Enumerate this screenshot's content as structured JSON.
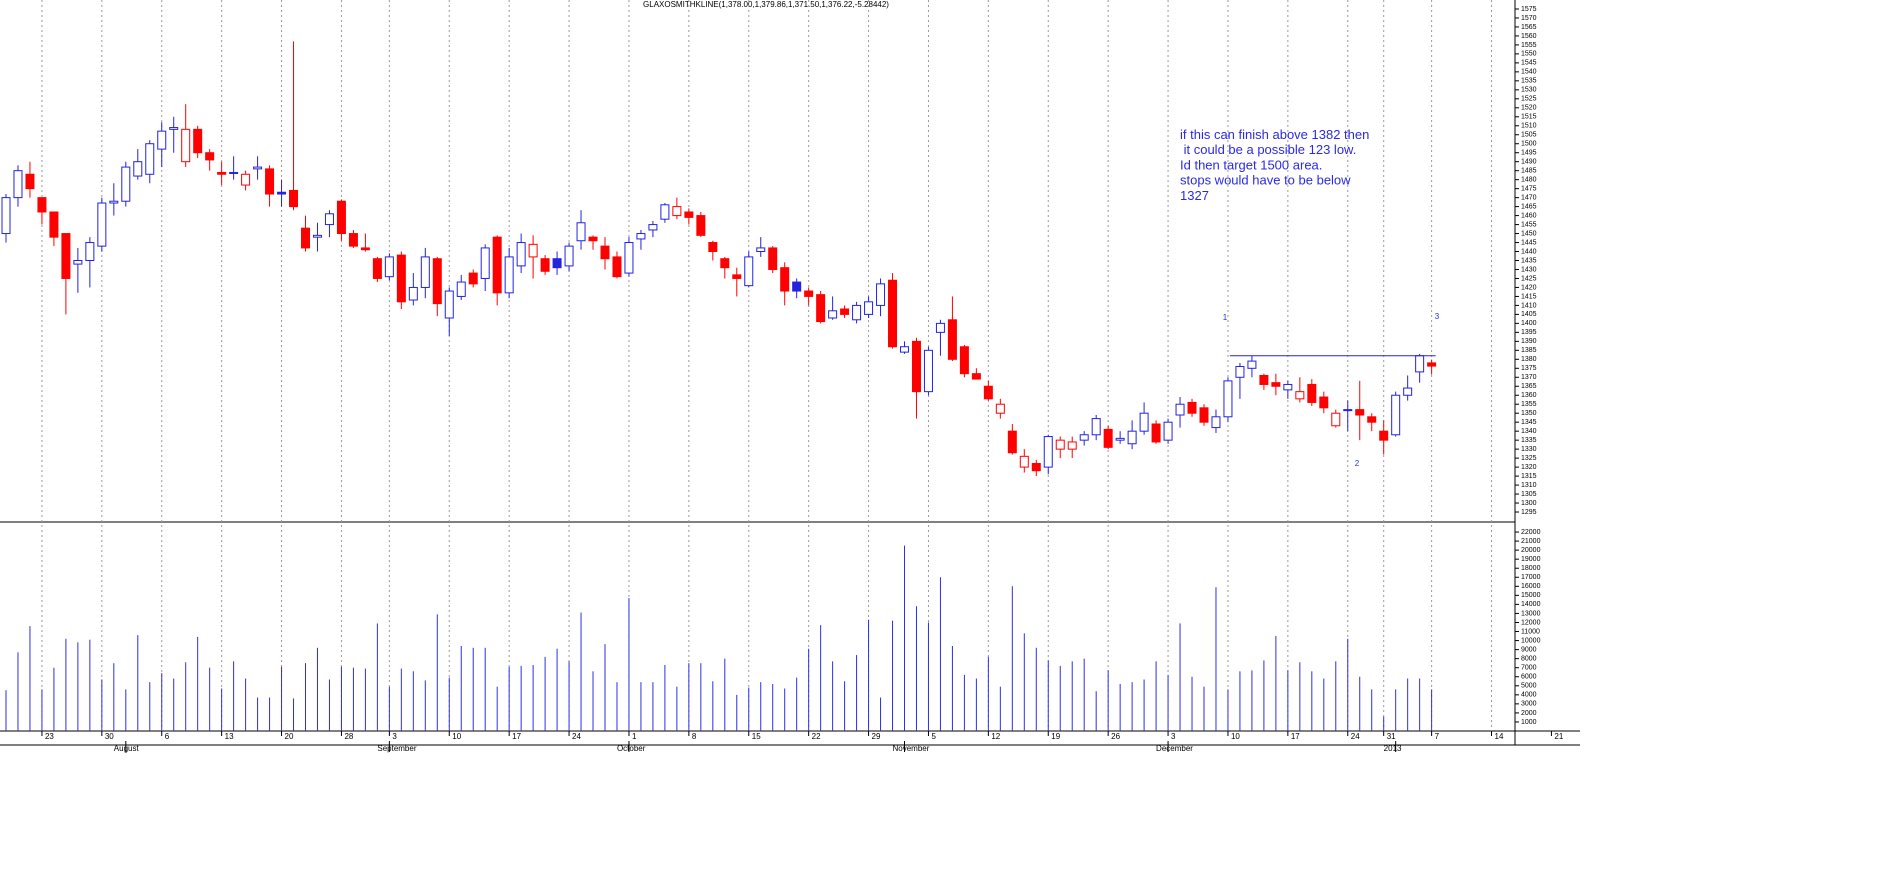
{
  "chart_data": {
    "type": "candlestick",
    "title": "GLAXOSMITHKLINE(1,378.00,1,379.86,1,371.50,1,376.22,-5.28442)",
    "categories": [
      null,
      null,
      null,
      "23",
      null,
      null,
      null,
      null,
      "30",
      null,
      null,
      null,
      null,
      "6",
      null,
      null,
      null,
      null,
      "13",
      null,
      null,
      null,
      null,
      "20",
      null,
      null,
      null,
      null,
      "28",
      null,
      null,
      null,
      "3",
      null,
      null,
      null,
      null,
      "10",
      null,
      null,
      null,
      null,
      "17",
      null,
      null,
      null,
      null,
      "24",
      null,
      null,
      null,
      null,
      "1",
      null,
      null,
      null,
      null,
      "8",
      null,
      null,
      null,
      null,
      "15",
      null,
      null,
      null,
      null,
      "22",
      null,
      null,
      null,
      null,
      "29",
      null,
      null,
      null,
      null,
      "5",
      null,
      null,
      null,
      null,
      "12",
      null,
      null,
      null,
      null,
      "19",
      null,
      null,
      null,
      null,
      "26",
      null,
      null,
      null,
      null,
      "3",
      null,
      null,
      null,
      null,
      "10",
      null,
      null,
      null,
      null,
      "17",
      null,
      null,
      null,
      null,
      "24",
      null,
      null,
      "31",
      null,
      null,
      null,
      "7",
      null,
      null,
      null,
      null,
      "14",
      null,
      null,
      null,
      null,
      "21"
    ],
    "months": [
      null,
      null,
      null,
      null,
      null,
      null,
      null,
      null,
      null,
      null,
      "August",
      null,
      null,
      null,
      null,
      null,
      null,
      null,
      null,
      null,
      null,
      null,
      null,
      null,
      null,
      null,
      null,
      null,
      null,
      null,
      null,
      null,
      "September",
      null,
      null,
      null,
      null,
      null,
      null,
      null,
      null,
      null,
      null,
      null,
      null,
      null,
      null,
      null,
      null,
      null,
      null,
      null,
      "October",
      null,
      null,
      null,
      null,
      null,
      null,
      null,
      null,
      null,
      null,
      null,
      null,
      null,
      null,
      null,
      null,
      null,
      null,
      null,
      null,
      null,
      null,
      "November",
      null,
      null,
      null,
      null,
      null,
      null,
      null,
      null,
      null,
      null,
      null,
      null,
      null,
      null,
      null,
      null,
      null,
      null,
      null,
      null,
      null,
      "December",
      null,
      null,
      null,
      null,
      null,
      null,
      null,
      null,
      null,
      null,
      null,
      null,
      null,
      null,
      null,
      null,
      null,
      null,
      "2013",
      null,
      null,
      null,
      null,
      null,
      null,
      null,
      null,
      null,
      null,
      null,
      null,
      null
    ],
    "open": [
      1450,
      1470,
      1483,
      1470,
      1462,
      1450,
      1433,
      1435,
      1443,
      1467,
      1468,
      1482,
      1483,
      1497,
      1508,
      1490,
      1508,
      1495,
      1484,
      1484,
      1477,
      1486,
      1486,
      1473,
      1474,
      1453,
      1448,
      1455,
      1468,
      1450,
      1442,
      1436,
      1426,
      1438,
      1413,
      1420,
      1436,
      1403,
      1415,
      1428,
      1425,
      1448,
      1417,
      1432,
      1437,
      1436,
      1436,
      1432,
      1446,
      1448,
      1443,
      1437,
      1428,
      1447,
      1452,
      1458,
      1460,
      1462,
      1460,
      1445,
      1436,
      1427,
      1421,
      1440,
      1442,
      1431,
      1423,
      1418,
      1416,
      1403,
      1408,
      1402,
      1405,
      1410,
      1424,
      1384,
      1390,
      1362,
      1395,
      1402,
      1387,
      1372,
      1365,
      1350,
      1340,
      1320,
      1322,
      1320,
      1330,
      1330,
      1335,
      1338,
      1341,
      1335,
      1333,
      1340,
      1344,
      1335,
      1349,
      1356,
      1353,
      1342,
      1348,
      1370,
      1375,
      1371,
      1367,
      1363,
      1358,
      1366,
      1359,
      1343,
      1352,
      1352,
      1348,
      1340,
      1338,
      1360,
      1373,
      1378,
      null,
      null,
      null,
      null,
      null,
      null,
      null,
      null,
      null,
      null
    ],
    "high": [
      1472,
      1488,
      1490,
      1470,
      1462,
      1450,
      1442,
      1448,
      1470,
      1478,
      1490,
      1497,
      1502,
      1512,
      1515,
      1522,
      1510,
      1497,
      1490,
      1493,
      1485,
      1493,
      1488,
      1480,
      1557,
      1460,
      1456,
      1463,
      1469,
      1452,
      1450,
      1437,
      1439,
      1440,
      1428,
      1442,
      1437,
      1420,
      1427,
      1430,
      1444,
      1449,
      1442,
      1450,
      1449,
      1438,
      1440,
      1445,
      1463,
      1449,
      1448,
      1440,
      1448,
      1452,
      1457,
      1467,
      1470,
      1464,
      1462,
      1446,
      1437,
      1431,
      1440,
      1448,
      1443,
      1434,
      1425,
      1420,
      1418,
      1415,
      1410,
      1412,
      1415,
      1425,
      1428,
      1390,
      1392,
      1387,
      1402,
      1415,
      1388,
      1375,
      1368,
      1358,
      1344,
      1330,
      1324,
      1338,
      1337,
      1337,
      1340,
      1349,
      1343,
      1340,
      1346,
      1356,
      1346,
      1347,
      1359,
      1358,
      1355,
      1352,
      1370,
      1378,
      1382,
      1372,
      1372,
      1368,
      1370,
      1369,
      1362,
      1352,
      1357,
      1368,
      1350,
      1346,
      1362,
      1371,
      1383,
      1379.86,
      null,
      null,
      null,
      null,
      null,
      null,
      null,
      null,
      null,
      null
    ],
    "low": [
      1445,
      1465,
      1470,
      1455,
      1443,
      1405,
      1417,
      1420,
      1440,
      1460,
      1465,
      1480,
      1478,
      1487,
      1495,
      1487,
      1492,
      1485,
      1477,
      1480,
      1474,
      1480,
      1465,
      1465,
      1463,
      1440,
      1440,
      1448,
      1446,
      1442,
      1440,
      1423,
      1424,
      1408,
      1410,
      1414,
      1404,
      1393,
      1413,
      1420,
      1418,
      1410,
      1414,
      1428,
      1425,
      1427,
      1427,
      1429,
      1441,
      1441,
      1430,
      1425,
      1426,
      1441,
      1448,
      1456,
      1458,
      1455,
      1448,
      1435,
      1425,
      1415,
      1420,
      1437,
      1428,
      1410,
      1414,
      1410,
      1400,
      1402,
      1403,
      1400,
      1403,
      1404,
      1386,
      1383,
      1347,
      1360,
      1382,
      1379,
      1370,
      1369,
      1357,
      1347,
      1327,
      1317,
      1315,
      1316,
      1325,
      1325,
      1332,
      1335,
      1330,
      1333,
      1330,
      1338,
      1333,
      1333,
      1342,
      1348,
      1343,
      1339,
      1345,
      1358,
      1370,
      1363,
      1360,
      1358,
      1356,
      1354,
      1350,
      1342,
      1340,
      1335,
      1340,
      1327,
      1337,
      1357,
      1367,
      1371.5,
      null,
      null,
      null,
      null,
      null,
      null,
      null,
      null,
      null,
      null
    ],
    "close": [
      1470,
      1485,
      1475,
      1462,
      1448,
      1425,
      1435,
      1445,
      1467,
      1468,
      1487,
      1490,
      1500,
      1507,
      1509,
      1508,
      1495,
      1491,
      1483,
      1484,
      1483,
      1487,
      1472,
      1472,
      1465,
      1442,
      1449,
      1461,
      1450,
      1443,
      1441,
      1425,
      1437,
      1412,
      1420,
      1437,
      1411,
      1418,
      1423,
      1422,
      1442,
      1417,
      1437,
      1445,
      1444,
      1429,
      1431,
      1443,
      1456,
      1446,
      1436,
      1426,
      1445,
      1450,
      1455,
      1466,
      1465,
      1459,
      1449,
      1440,
      1431,
      1425,
      1437,
      1442,
      1430,
      1418,
      1418,
      1415,
      1401,
      1407,
      1405,
      1410,
      1412,
      1422,
      1387,
      1387,
      1362,
      1385,
      1400,
      1380,
      1372,
      1369,
      1358,
      1355,
      1328,
      1326,
      1318,
      1337,
      1335,
      1334,
      1338,
      1347,
      1331,
      1336,
      1340,
      1350,
      1334,
      1345,
      1355,
      1350,
      1345,
      1348,
      1368,
      1376,
      1379,
      1366,
      1365,
      1366,
      1362,
      1356,
      1353,
      1350,
      1352,
      1349,
      1345,
      1335,
      1360,
      1364,
      1382,
      1376.22,
      null,
      null,
      null,
      null,
      null,
      null,
      null,
      null,
      null,
      null
    ],
    "volume": [
      4500,
      8700,
      11600,
      4600,
      7000,
      10200,
      9800,
      10100,
      5700,
      7500,
      4600,
      10600,
      5400,
      6400,
      5800,
      7600,
      10400,
      7000,
      4700,
      7700,
      5800,
      3700,
      3700,
      7100,
      3600,
      7500,
      9200,
      5700,
      7100,
      7000,
      6900,
      11900,
      4900,
      6900,
      6600,
      5600,
      12900,
      5900,
      9400,
      9200,
      9200,
      4900,
      7100,
      7200,
      7300,
      8200,
      9100,
      7700,
      13100,
      6600,
      9600,
      5400,
      14700,
      5400,
      5400,
      7300,
      4900,
      7500,
      7500,
      5500,
      8000,
      4000,
      4800,
      5400,
      5200,
      4700,
      5900,
      9100,
      11700,
      7700,
      5500,
      8400,
      12300,
      3700,
      12200,
      20500,
      13800,
      12000,
      17000,
      9400,
      6200,
      5800,
      8200,
      4900,
      16000,
      10800,
      9200,
      7800,
      7200,
      7700,
      8000,
      4400,
      6700,
      5200,
      5400,
      5700,
      7700,
      6200,
      11900,
      6000,
      4900,
      15900,
      4600,
      6600,
      6700,
      7800,
      10500,
      6700,
      7600,
      6600,
      5800,
      7700,
      10200,
      6000,
      4600,
      1600,
      4600,
      5800,
      5800,
      4600,
      null,
      null,
      null,
      null,
      null,
      null,
      null,
      null,
      null,
      null
    ],
    "colors": {
      "up": "#2323e0",
      "down": "#ff0000",
      "volume": "#2e2ee6"
    },
    "ylim": [
      1290,
      1580
    ],
    "yticks": [
      1295,
      1300,
      1305,
      1310,
      1315,
      1320,
      1325,
      1330,
      1335,
      1340,
      1345,
      1350,
      1355,
      1360,
      1365,
      1370,
      1375,
      1380,
      1385,
      1390,
      1395,
      1400,
      1405,
      1410,
      1415,
      1420,
      1425,
      1430,
      1435,
      1440,
      1445,
      1450,
      1455,
      1460,
      1465,
      1470,
      1475,
      1480,
      1485,
      1490,
      1495,
      1500,
      1505,
      1510,
      1515,
      1520,
      1525,
      1530,
      1535,
      1540,
      1545,
      1550,
      1555,
      1560,
      1565,
      1570,
      1575
    ],
    "volume_ylim": [
      0,
      23000
    ],
    "volume_ticks": [
      1000,
      2000,
      3000,
      4000,
      5000,
      6000,
      7000,
      8000,
      9000,
      10000,
      11000,
      12000,
      13000,
      14000,
      15000,
      16000,
      17000,
      18000,
      19000,
      20000,
      21000,
      22000
    ],
    "hline": 1382,
    "annotations": [
      "1",
      "2",
      "3"
    ],
    "note": [
      "if this can finish above 1382 then",
      " it could be a possible 123 low.",
      "Id then target 1500 area.",
      "stops would have to be below",
      "1327"
    ],
    "grid": true
  }
}
